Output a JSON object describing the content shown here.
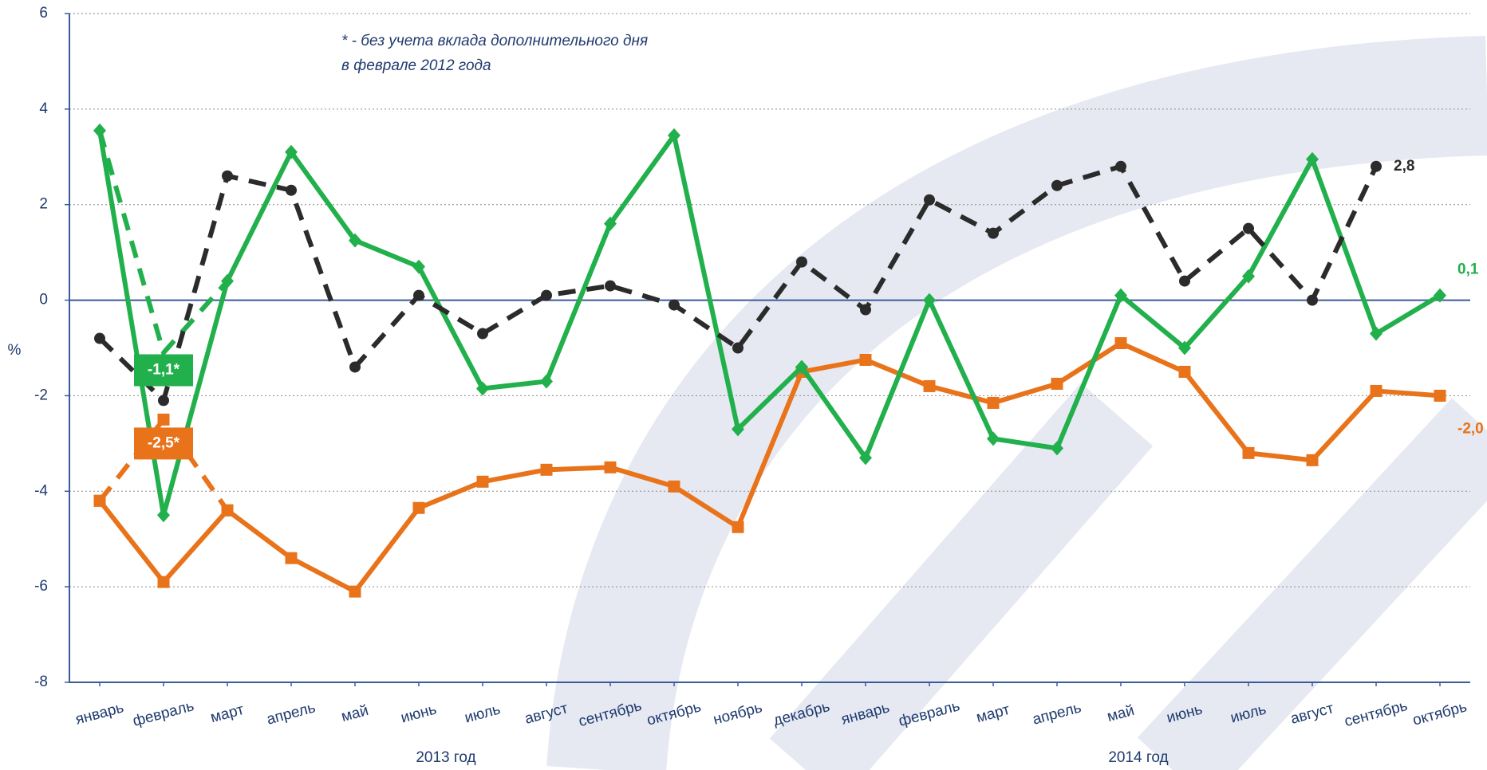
{
  "chart_data": {
    "type": "line",
    "y_label": "%",
    "annotation": [
      "* - без учета вклада дополнительного дня",
      "в феврале 2012 года"
    ],
    "categories": [
      "январь",
      "февраль",
      "март",
      "апрель",
      "май",
      "июнь",
      "июль",
      "август",
      "сентябрь",
      "октябрь",
      "ноябрь",
      "декабрь",
      "январь",
      "февраль",
      "март",
      "апрель",
      "май",
      "июнь",
      "июль",
      "август",
      "сентябрь",
      "октябрь"
    ],
    "groups": [
      "2013 год",
      "2014 год"
    ],
    "ylim": [
      -8,
      6
    ],
    "yticks": [
      -8,
      -6,
      -4,
      -2,
      0,
      2,
      4,
      6
    ],
    "grid": true,
    "series": [
      {
        "color": "#2b2b2b",
        "dash": true,
        "marker": "circle",
        "values": [
          -0.8,
          -2.1,
          2.6,
          2.3,
          -1.4,
          0.1,
          -0.7,
          0.1,
          0.3,
          -0.1,
          -1.0,
          0.8,
          -0.2,
          2.1,
          1.4,
          2.4,
          2.8,
          0.4,
          1.5,
          0.0,
          2.8,
          null
        ],
        "value_labels": [
          null,
          null,
          null,
          null,
          null,
          null,
          null,
          null,
          null,
          null,
          null,
          null,
          null,
          null,
          null,
          null,
          null,
          null,
          null,
          null,
          "2,8",
          null
        ]
      },
      {
        "color": "#21b04b",
        "dash": false,
        "marker": "diamond",
        "values": [
          3.55,
          -4.5,
          0.4,
          3.1,
          1.25,
          0.7,
          -1.85,
          -1.7,
          1.6,
          3.45,
          -2.7,
          -1.4,
          -3.3,
          0.0,
          -2.9,
          -3.1,
          0.1,
          -1.0,
          0.5,
          2.95,
          -0.7,
          0.1
        ],
        "value_labels": [
          null,
          null,
          null,
          null,
          null,
          null,
          null,
          null,
          null,
          null,
          null,
          null,
          null,
          null,
          null,
          null,
          null,
          null,
          null,
          null,
          null,
          "0,1"
        ]
      },
      {
        "color": "#e8731a",
        "dash": false,
        "marker": "square",
        "values": [
          -4.2,
          -5.9,
          -4.4,
          -5.4,
          -6.1,
          -4.35,
          -3.8,
          -3.55,
          -3.5,
          -3.9,
          -4.75,
          -1.5,
          -1.25,
          -1.8,
          -2.15,
          -1.75,
          -0.9,
          -1.5,
          -3.2,
          -3.35,
          -1.9,
          -2.0
        ],
        "value_labels": [
          null,
          null,
          null,
          null,
          null,
          null,
          null,
          null,
          null,
          null,
          null,
          null,
          null,
          null,
          null,
          null,
          null,
          null,
          null,
          null,
          null,
          "-2,0"
        ]
      },
      {
        "color": "#21b04b",
        "dash": true,
        "marker": null,
        "values": [
          3.55,
          -1.1,
          0.4,
          null,
          null,
          null,
          null,
          null,
          null,
          null,
          null,
          null,
          null,
          null,
          null,
          null,
          null,
          null,
          null,
          null,
          null,
          null
        ],
        "value_labels": [
          null,
          "-1,1*",
          null,
          null,
          null,
          null,
          null,
          null,
          null,
          null,
          null,
          null,
          null,
          null,
          null,
          null,
          null,
          null,
          null,
          null,
          null,
          null
        ]
      },
      {
        "color": "#e8731a",
        "dash": true,
        "marker": "square",
        "values": [
          -4.2,
          -2.5,
          -4.4,
          null,
          null,
          null,
          null,
          null,
          null,
          null,
          null,
          null,
          null,
          null,
          null,
          null,
          null,
          null,
          null,
          null,
          null,
          null
        ],
        "value_labels": [
          null,
          "-2,5*",
          null,
          null,
          null,
          null,
          null,
          null,
          null,
          null,
          null,
          null,
          null,
          null,
          null,
          null,
          null,
          null,
          null,
          null,
          null,
          null
        ]
      }
    ]
  }
}
